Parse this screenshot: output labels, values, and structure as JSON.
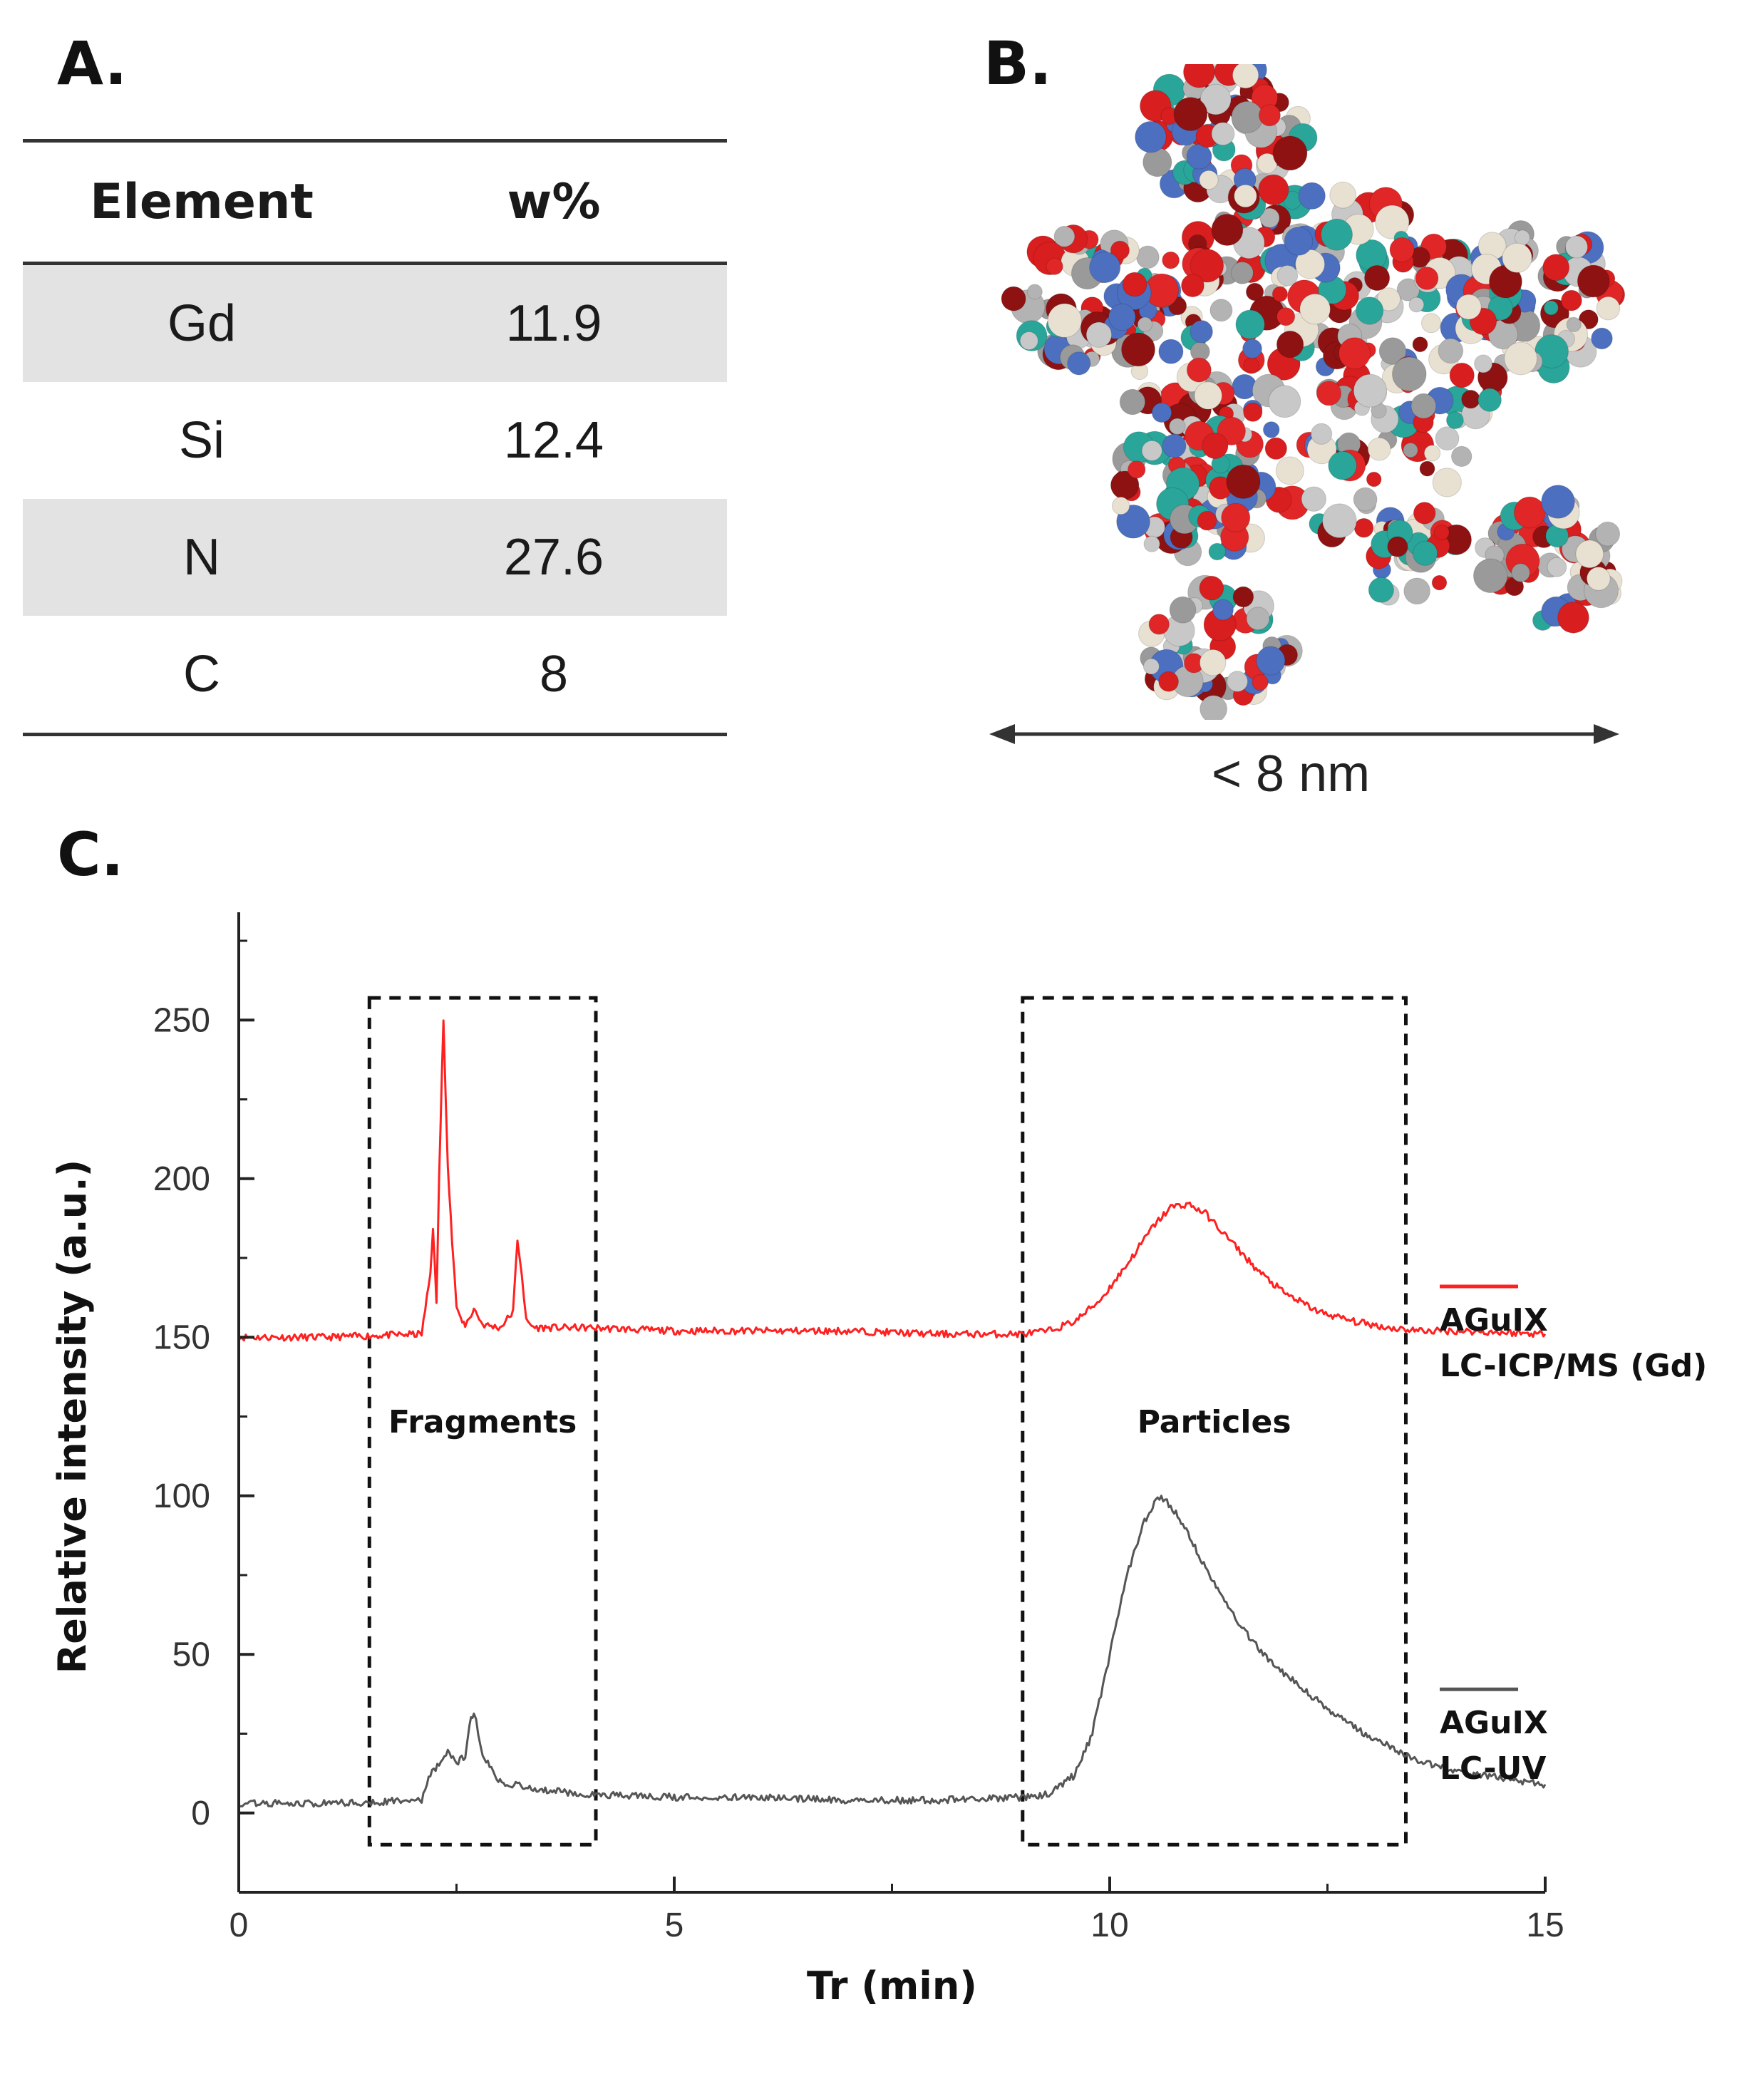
{
  "panels": {
    "a_label": "A.",
    "b_label": "B.",
    "c_label": "C."
  },
  "table": {
    "headers": [
      "Element",
      "w%"
    ],
    "rows": [
      {
        "element": "Gd",
        "value": "11.9"
      },
      {
        "element": "Si",
        "value": "12.4"
      },
      {
        "element": "N",
        "value": "27.6"
      },
      {
        "element": "C",
        "value": "8"
      }
    ]
  },
  "structure": {
    "scale_label": "< 8 nm"
  },
  "chart_data": {
    "type": "line",
    "xlabel": "Tr (min)",
    "ylabel": "Relative intensity (a.u.)",
    "xlim": [
      0,
      15
    ],
    "ylim": [
      -25,
      275
    ],
    "xticks": [
      0,
      5,
      10,
      15
    ],
    "yticks": [
      0,
      50,
      100,
      150,
      200,
      250
    ],
    "grid": false,
    "legend_position": "right",
    "regions": [
      {
        "label": "Fragments",
        "x_range": [
          1.5,
          4.1
        ],
        "y_range": [
          -10,
          257
        ]
      },
      {
        "label": "Particles",
        "x_range": [
          9.0,
          13.4
        ],
        "y_range": [
          -10,
          257
        ]
      }
    ],
    "series": [
      {
        "name": "AGuIX LC-ICP/MS (Gd)",
        "legend_lines": [
          "AGuIX",
          "LC-ICP/MS (Gd)"
        ],
        "color": "#ff2020",
        "x": [
          0,
          1,
          2.1,
          2.2,
          2.23,
          2.27,
          2.3,
          2.35,
          2.4,
          2.45,
          2.5,
          2.55,
          2.6,
          2.65,
          2.7,
          2.8,
          3.0,
          3.15,
          3.2,
          3.25,
          3.3,
          3.4,
          3.6,
          4,
          5,
          6,
          7,
          8,
          9,
          9.3,
          9.6,
          9.9,
          10.2,
          10.5,
          10.7,
          10.9,
          11.1,
          11.4,
          11.7,
          12.0,
          12.4,
          12.8,
          13.2,
          13.6,
          14,
          15
        ],
        "y": [
          150,
          150,
          151,
          170,
          185,
          160,
          200,
          250,
          205,
          180,
          160,
          155,
          154,
          156,
          159,
          154,
          153,
          158,
          181,
          170,
          155,
          153,
          153,
          153,
          152,
          152,
          152,
          151,
          151,
          152,
          155,
          162,
          173,
          185,
          191,
          192,
          189,
          180,
          171,
          164,
          158,
          155,
          153,
          152,
          152,
          151
        ]
      },
      {
        "name": "AGuIX LC-UV",
        "legend_lines": [
          "AGuIX",
          "LC-UV"
        ],
        "color": "#555555",
        "x": [
          0,
          1,
          2.1,
          2.2,
          2.3,
          2.4,
          2.5,
          2.6,
          2.65,
          2.7,
          2.75,
          2.8,
          2.9,
          3.0,
          3.3,
          3.6,
          4,
          5,
          6,
          7,
          8,
          9,
          9.3,
          9.6,
          9.8,
          10.0,
          10.2,
          10.4,
          10.55,
          10.7,
          10.9,
          11.1,
          11.4,
          11.7,
          12.0,
          12.4,
          12.8,
          13.2,
          13.6,
          14,
          15
        ],
        "y": [
          3,
          3,
          4,
          12,
          15,
          20,
          16,
          18,
          28,
          32,
          25,
          18,
          14,
          10,
          8,
          7,
          6,
          5,
          5,
          4,
          4,
          5,
          6,
          12,
          25,
          50,
          75,
          92,
          100,
          97,
          88,
          77,
          63,
          52,
          44,
          35,
          27,
          21,
          16,
          13,
          9
        ]
      }
    ]
  }
}
